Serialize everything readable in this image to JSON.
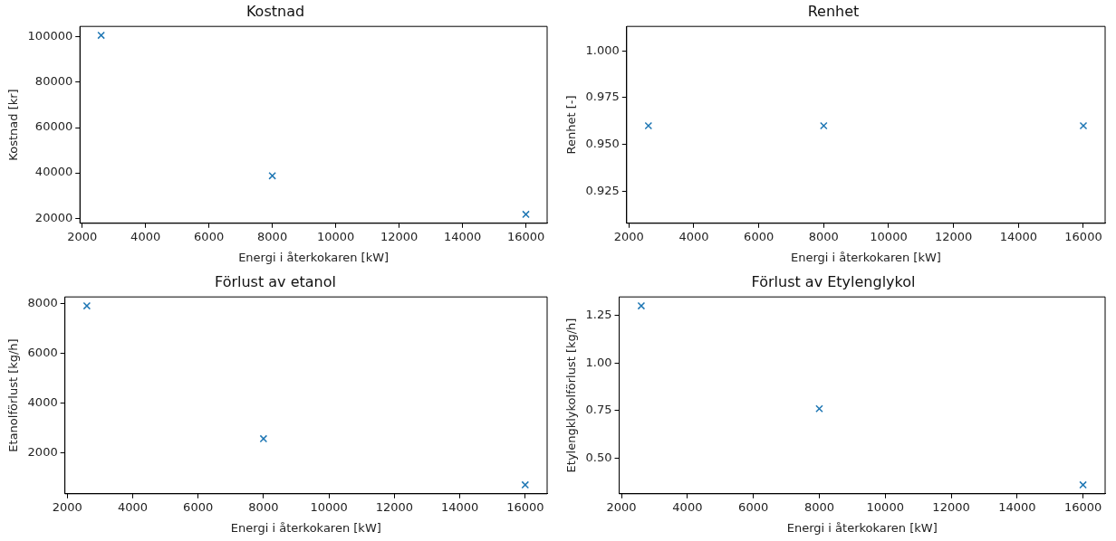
{
  "chart_data": [
    {
      "type": "scatter",
      "title": "Kostnad",
      "xlabel": "Energi i återkokaren [kW]",
      "ylabel": "Kostnad [kr]",
      "x": [
        2600,
        8000,
        16000
      ],
      "values": [
        100700,
        38700,
        21700
      ],
      "color": "#1f77b4",
      "marker": "cross",
      "xlim": [
        1930,
        16670
      ],
      "ylim": [
        17750,
        104650
      ],
      "xticks": [
        2000,
        4000,
        6000,
        8000,
        10000,
        12000,
        14000,
        16000
      ],
      "yticks": [
        20000,
        40000,
        60000,
        80000,
        100000
      ]
    },
    {
      "type": "scatter",
      "title": "Renhet",
      "xlabel": "Energi i återkokaren [kW]",
      "ylabel": "Renhet [-]",
      "x": [
        2600,
        8000,
        16000
      ],
      "values": [
        0.96,
        0.96,
        0.96
      ],
      "color": "#1f77b4",
      "marker": "cross",
      "xlim": [
        1930,
        16670
      ],
      "ylim": [
        0.908,
        1.013
      ],
      "xticks": [
        2000,
        4000,
        6000,
        8000,
        10000,
        12000,
        14000,
        16000
      ],
      "yticks": [
        {
          "value": 0.925,
          "label": "0.925"
        },
        {
          "value": 0.95,
          "label": "0.950"
        },
        {
          "value": 0.975,
          "label": "0.975"
        },
        {
          "value": 1,
          "label": "1.000"
        }
      ]
    },
    {
      "type": "scatter",
      "title": "Förlust av etanol",
      "xlabel": "Energi i återkokaren [kW]",
      "ylabel": "Etanolförlust [kg/h]",
      "x": [
        2600,
        8000,
        16000
      ],
      "values": [
        7900,
        2570,
        720
      ],
      "color": "#1f77b4",
      "marker": "cross",
      "xlim": [
        1930,
        16670
      ],
      "ylim": [
        361,
        8259
      ],
      "xticks": [
        2000,
        4000,
        6000,
        8000,
        10000,
        12000,
        14000,
        16000
      ],
      "yticks": [
        2000,
        4000,
        6000,
        8000
      ]
    },
    {
      "type": "scatter",
      "title": "Förlust av Etylenglykol",
      "xlabel": "Energi i återkokaren [kW]",
      "ylabel": "Etylengklykolförlust [kg/h]",
      "x": [
        2600,
        8000,
        16000
      ],
      "values": [
        1.3,
        0.76,
        0.36
      ],
      "color": "#1f77b4",
      "marker": "cross",
      "xlim": [
        1930,
        16670
      ],
      "ylim": [
        0.313,
        1.347
      ],
      "xticks": [
        2000,
        4000,
        6000,
        8000,
        10000,
        12000,
        14000,
        16000
      ],
      "yticks": [
        {
          "value": 0.5,
          "label": "0.50"
        },
        {
          "value": 0.75,
          "label": "0.75"
        },
        {
          "value": 1,
          "label": "1.00"
        },
        {
          "value": 1.25,
          "label": "1.25"
        }
      ]
    }
  ]
}
